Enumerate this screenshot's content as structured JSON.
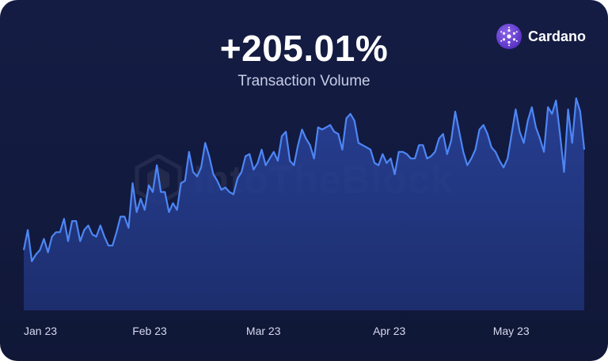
{
  "headline": "+205.01%",
  "subtitle": "Transaction Volume",
  "brand": {
    "label": "Cardano",
    "icon": "cardano-logo-icon"
  },
  "watermark": {
    "text": "IntoTheBlock",
    "icon": "intotheblock-logo-icon"
  },
  "colors": {
    "background": "#131b40",
    "line": "#4d86f5",
    "area": "#243a86",
    "brand_logo": "#5b34c6"
  },
  "chart_data": {
    "type": "area",
    "title": "",
    "xlabel": "",
    "ylabel": "",
    "x_ticks": [
      {
        "label": "Jan 23",
        "day": 0
      },
      {
        "label": "Feb 23",
        "day": 31
      },
      {
        "label": "Mar 23",
        "day": 59
      },
      {
        "label": "Apr 23",
        "day": 90
      },
      {
        "label": "May 23",
        "day": 120
      }
    ],
    "x_range_days": [
      0,
      138
    ],
    "y_range": [
      0,
      100
    ],
    "grid": false,
    "legend": "none",
    "series": [
      {
        "values": [
          27,
          36,
          22,
          25,
          27,
          32,
          26,
          33,
          35,
          35,
          41,
          31,
          40,
          40,
          31,
          36,
          38,
          34,
          33,
          38,
          33,
          29,
          29,
          35,
          42,
          42,
          37,
          57,
          44,
          50,
          45,
          56,
          53,
          65,
          53,
          53,
          44,
          48,
          45,
          57,
          58,
          71,
          62,
          60,
          64,
          75,
          69,
          61,
          58,
          54,
          55,
          53,
          52,
          59,
          62,
          69,
          70,
          63,
          66,
          72,
          65,
          68,
          71,
          67,
          78,
          80,
          67,
          65,
          74,
          81,
          77,
          74,
          68,
          82,
          81,
          82,
          83,
          80,
          79,
          72,
          86,
          88,
          85,
          75,
          74,
          73,
          72,
          66,
          65,
          70,
          66,
          68,
          61,
          71,
          71,
          70,
          68,
          68,
          74,
          74,
          68,
          69,
          71,
          77,
          79,
          70,
          76,
          89,
          80,
          71,
          65,
          68,
          72,
          81,
          83,
          79,
          73,
          71,
          67,
          64,
          68,
          79,
          90,
          80,
          75,
          85,
          91,
          82,
          77,
          71,
          91,
          88,
          94,
          79,
          62,
          90,
          75,
          95,
          89,
          72
        ]
      }
    ]
  }
}
